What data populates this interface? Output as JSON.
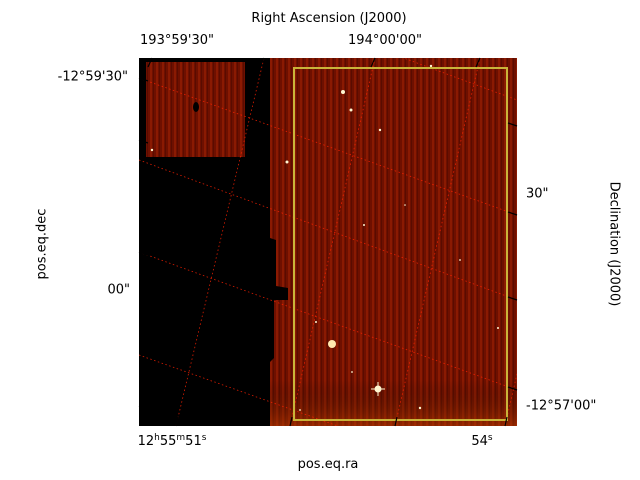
{
  "axes": {
    "top_title": "Right Ascension (J2000)",
    "bottom_title": "pos.eq.ra",
    "left_title": "pos.eq.dec",
    "right_title": "Declination (J2000)"
  },
  "ticks": {
    "top": [
      "193°59'30\"",
      "194°00'00\""
    ],
    "left": [
      "-12°59'30\"",
      "00\""
    ],
    "right": [
      "30\"",
      "-12°57'00\""
    ],
    "bottom": [
      {
        "base": "12",
        "h": "h",
        "mid1": "55",
        "m": "m",
        "mid2": "51",
        "s": "s"
      },
      {
        "base": "54",
        "s": "s"
      }
    ]
  },
  "colors": {
    "background_image": "#000000",
    "heat": "#7a1400",
    "region_box": "#c9b43a",
    "grid": "#ff2200"
  }
}
